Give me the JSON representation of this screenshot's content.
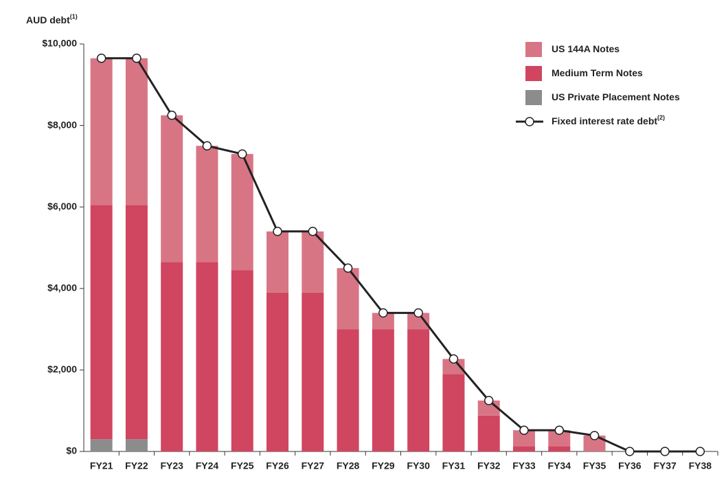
{
  "chart_data": {
    "type": "stacked_bar_line",
    "title": {
      "text": "AUD debt",
      "superscript": "(1)"
    },
    "categories": [
      "FY21",
      "FY22",
      "FY23",
      "FY24",
      "FY25",
      "FY26",
      "FY27",
      "FY28",
      "FY29",
      "FY30",
      "FY31",
      "FY32",
      "FY33",
      "FY34",
      "FY35",
      "FY36",
      "FY37",
      "FY38"
    ],
    "series": [
      {
        "name": "US 144A Notes",
        "color": "#d87585",
        "type": "bar",
        "values": [
          3600,
          3600,
          3600,
          2850,
          2850,
          1500,
          1500,
          1500,
          400,
          400,
          370,
          370,
          390,
          390,
          390,
          0,
          0,
          0
        ]
      },
      {
        "name": "Medium Term Notes",
        "color": "#d04560",
        "type": "bar",
        "values": [
          5750,
          5750,
          4650,
          4650,
          4450,
          3900,
          3900,
          3000,
          3000,
          3000,
          1900,
          880,
          130,
          130,
          0,
          0,
          0,
          0
        ]
      },
      {
        "name": "US Private Placement Notes",
        "color": "#8c8c8c",
        "type": "bar",
        "values": [
          300,
          300,
          0,
          0,
          0,
          0,
          0,
          0,
          0,
          0,
          0,
          0,
          0,
          0,
          0,
          0,
          0,
          0
        ]
      },
      {
        "name": "Fixed interest rate debt",
        "name_superscript": "(2)",
        "color": "#222222",
        "type": "line",
        "values": [
          9650,
          9650,
          8250,
          7500,
          7300,
          5400,
          5400,
          4500,
          3400,
          3400,
          2270,
          1250,
          520,
          520,
          390,
          0,
          0,
          0
        ]
      }
    ],
    "ylim": [
      0,
      10000
    ],
    "yticks": [
      {
        "value": 0,
        "label": "$0"
      },
      {
        "value": 2000,
        "label": "$2,000"
      },
      {
        "value": 4000,
        "label": "$4,000"
      },
      {
        "value": 6000,
        "label": "$6,000"
      },
      {
        "value": 8000,
        "label": "$8,000"
      },
      {
        "value": 10000,
        "label": "$10,000"
      }
    ],
    "legend": "top-right"
  }
}
